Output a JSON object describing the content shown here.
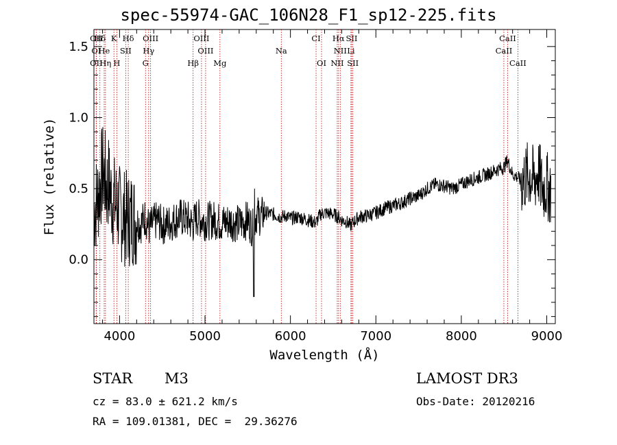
{
  "chart_data": {
    "type": "line",
    "title": "spec-55974-GAC_106N28_F1_sp12-225.fits",
    "xlabel": "Wavelength (Å)",
    "ylabel": "Flux (relative)",
    "xlim": [
      3700,
      9100
    ],
    "ylim": [
      -0.45,
      1.62
    ],
    "xticks": [
      4000,
      5000,
      6000,
      7000,
      8000,
      9000
    ],
    "yticks": [
      0.0,
      0.5,
      1.0,
      1.5
    ],
    "xtick_labels": [
      "4000",
      "5000",
      "6000",
      "7000",
      "8000",
      "9000"
    ],
    "ytick_labels": [
      "0.0",
      "0.5",
      "1.0",
      "1.5"
    ],
    "series": [
      {
        "name": "flux",
        "x": [
          3700,
          3750,
          3800,
          3830,
          3850,
          3870,
          3900,
          3930,
          3950,
          3970,
          4000,
          4050,
          4100,
          4150,
          4200,
          4250,
          4300,
          4350,
          4400,
          4450,
          4500,
          4600,
          4700,
          4800,
          4861,
          4900,
          5000,
          5100,
          5200,
          5300,
          5400,
          5500,
          5560,
          5600,
          5650,
          5700,
          5800,
          5893,
          5950,
          6000,
          6100,
          6200,
          6300,
          6350,
          6400,
          6500,
          6563,
          6600,
          6650,
          6700,
          6750,
          6800,
          6900,
          7000,
          7100,
          7200,
          7300,
          7400,
          7500,
          7600,
          7700,
          7800,
          7900,
          8000,
          8100,
          8200,
          8300,
          8400,
          8500,
          8540,
          8600,
          8662,
          8700,
          8800,
          8850,
          8900,
          8950,
          9000,
          9050
        ],
        "values": [
          0.35,
          0.45,
          0.62,
          0.58,
          0.5,
          0.55,
          0.45,
          0.42,
          0.38,
          0.4,
          0.33,
          0.3,
          0.28,
          0.3,
          0.27,
          0.25,
          0.3,
          0.22,
          0.26,
          0.28,
          0.24,
          0.26,
          0.3,
          0.28,
          0.25,
          0.3,
          0.27,
          0.28,
          0.26,
          0.27,
          0.25,
          0.28,
          0.22,
          0.32,
          0.3,
          0.33,
          0.32,
          0.3,
          0.31,
          0.29,
          0.3,
          0.28,
          0.26,
          0.32,
          0.33,
          0.32,
          0.3,
          0.28,
          0.27,
          0.24,
          0.27,
          0.3,
          0.31,
          0.33,
          0.36,
          0.38,
          0.4,
          0.43,
          0.45,
          0.5,
          0.53,
          0.52,
          0.5,
          0.53,
          0.56,
          0.58,
          0.6,
          0.63,
          0.65,
          0.7,
          0.6,
          0.58,
          0.55,
          0.6,
          0.55,
          0.62,
          0.5,
          0.52,
          0.48
        ]
      }
    ],
    "lines": [
      {
        "label": "Hδ",
        "x": 3770,
        "row": 1
      },
      {
        "label": "OII",
        "x": 3727,
        "row": 1
      },
      {
        "label": "K",
        "x": 3934,
        "row": 1
      },
      {
        "label": "Hδ",
        "x": 4102,
        "row": 1
      },
      {
        "label": "OIII",
        "x": 4363,
        "row": 1
      },
      {
        "label": "OIII",
        "x": 4959,
        "row": 1
      },
      {
        "label": "CI",
        "x": 6300,
        "row": 1
      },
      {
        "label": "Hα",
        "x": 6563,
        "row": 1
      },
      {
        "label": "SII",
        "x": 6717,
        "row": 1
      },
      {
        "label": "CaII",
        "x": 8542,
        "row": 1
      },
      {
        "label": "OI",
        "x": 3727,
        "row": 2
      },
      {
        "label": "He",
        "x": 3820,
        "row": 2
      },
      {
        "label": "SII",
        "x": 4072,
        "row": 2
      },
      {
        "label": "Hγ",
        "x": 4340,
        "row": 2
      },
      {
        "label": "OIII",
        "x": 5007,
        "row": 2
      },
      {
        "label": "Na",
        "x": 5893,
        "row": 2
      },
      {
        "label": "NII",
        "x": 6583,
        "row": 2
      },
      {
        "label": "Li",
        "x": 6708,
        "row": 2
      },
      {
        "label": "CaII",
        "x": 8498,
        "row": 2
      },
      {
        "label": "OII",
        "x": 3727,
        "row": 3
      },
      {
        "label": "Hη",
        "x": 3835,
        "row": 3
      },
      {
        "label": "H",
        "x": 3968,
        "row": 3
      },
      {
        "label": "G",
        "x": 4304,
        "row": 3
      },
      {
        "label": "Hβ",
        "x": 4861,
        "row": 3
      },
      {
        "label": "Mg",
        "x": 5175,
        "row": 3
      },
      {
        "label": "OI",
        "x": 6364,
        "row": 3
      },
      {
        "label": "NII",
        "x": 6548,
        "row": 3
      },
      {
        "label": "SII",
        "x": 6731,
        "row": 3
      },
      {
        "label": "CaII",
        "x": 8662,
        "row": 3
      }
    ]
  },
  "info": {
    "class_label": "STAR",
    "subclass": "M3",
    "survey": "LAMOST DR3",
    "cz_line": "cz = 83.0 ± 621.2 km/s",
    "obs_date_line": "Obs-Date: 20120216",
    "coord_line": "RA = 109.01381, DEC =  29.36276"
  }
}
